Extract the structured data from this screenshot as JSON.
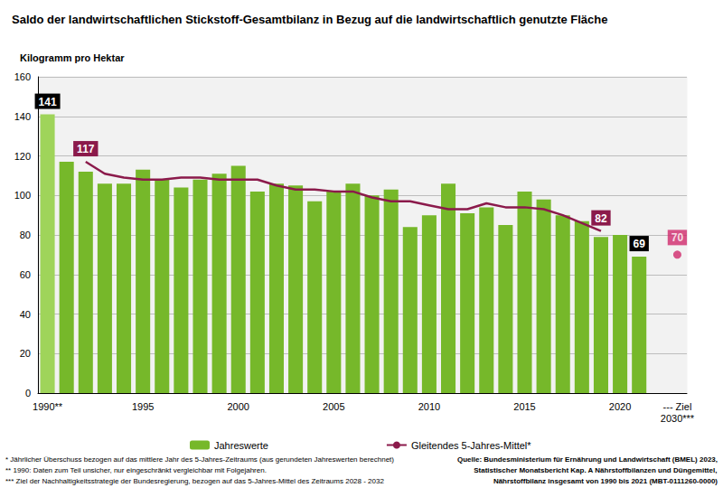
{
  "chart_data": {
    "type": "bar",
    "title": "Saldo der landwirtschaftlichen Stickstoff-Gesamtbilanz in Bezug auf die landwirtschaftlich genutzte Fläche",
    "ylabel": "Kilogramm pro Hektar",
    "categories": [
      "1990**",
      null,
      null,
      null,
      null,
      "1995",
      null,
      null,
      null,
      null,
      "2000",
      null,
      null,
      null,
      null,
      "2005",
      null,
      null,
      null,
      null,
      "2010",
      null,
      null,
      null,
      null,
      "2015",
      null,
      null,
      null,
      null,
      "2020",
      null,
      null,
      "--- Ziel\n2030***"
    ],
    "series": [
      {
        "name": "Jahreswerte",
        "type": "bar",
        "color": "#76b82a",
        "colors": [
          "#9fd45a",
          "#76b82a",
          "#76b82a",
          "#76b82a",
          "#76b82a",
          "#76b82a",
          "#76b82a",
          "#76b82a",
          "#76b82a",
          "#76b82a",
          "#76b82a",
          "#76b82a",
          "#76b82a",
          "#76b82a",
          "#76b82a",
          "#76b82a",
          "#76b82a",
          "#76b82a",
          "#76b82a",
          "#76b82a",
          "#76b82a",
          "#76b82a",
          "#76b82a",
          "#76b82a",
          "#76b82a",
          "#76b82a",
          "#76b82a",
          "#76b82a",
          "#76b82a",
          "#76b82a",
          "#76b82a",
          "#76b82a",
          "#76b82a",
          "#76b82a"
        ],
        "values": [
          141,
          117,
          112,
          106,
          106,
          113,
          108,
          104,
          108,
          111,
          115,
          102,
          106,
          105,
          97,
          102,
          106,
          100,
          103,
          84,
          90,
          106,
          91,
          94,
          85,
          102,
          98,
          90,
          87,
          79,
          80,
          69,
          null,
          null
        ],
        "value_labels": [
          "141",
          null,
          null,
          null,
          null,
          null,
          null,
          null,
          null,
          null,
          null,
          null,
          null,
          null,
          null,
          null,
          null,
          null,
          null,
          null,
          null,
          null,
          null,
          null,
          null,
          null,
          null,
          null,
          null,
          null,
          null,
          "69",
          null,
          null
        ]
      },
      {
        "name": "Gleitendes 5-Jahres-Mittel*",
        "type": "line",
        "color": "#8b1a4b",
        "line_style": "solid",
        "values": [
          null,
          null,
          117,
          111,
          109,
          108,
          108,
          109,
          109,
          108,
          108,
          108,
          105,
          103,
          103,
          102,
          102,
          99,
          97,
          97,
          95,
          93,
          93,
          96,
          94,
          94,
          93,
          90,
          86,
          82,
          null,
          null,
          null,
          null
        ],
        "value_labels": [
          null,
          null,
          "117",
          null,
          null,
          null,
          null,
          null,
          null,
          null,
          null,
          null,
          null,
          null,
          null,
          null,
          null,
          null,
          null,
          null,
          null,
          null,
          null,
          null,
          null,
          null,
          null,
          null,
          null,
          "82",
          null,
          null,
          null,
          null
        ]
      },
      {
        "type": "scatter",
        "color": "#d0296b",
        "marker": "circle",
        "values": [
          null,
          null,
          null,
          null,
          null,
          null,
          null,
          null,
          null,
          null,
          null,
          null,
          null,
          null,
          null,
          null,
          null,
          null,
          null,
          null,
          null,
          null,
          null,
          null,
          null,
          null,
          null,
          null,
          null,
          null,
          null,
          null,
          null,
          70
        ],
        "value_labels": [
          null,
          null,
          null,
          null,
          null,
          null,
          null,
          null,
          null,
          null,
          null,
          null,
          null,
          null,
          null,
          null,
          null,
          null,
          null,
          null,
          null,
          null,
          null,
          null,
          null,
          null,
          null,
          null,
          null,
          null,
          null,
          null,
          null,
          "70"
        ]
      }
    ],
    "ylim": [
      0,
      160
    ],
    "yticks": [
      0,
      20,
      40,
      60,
      80,
      100,
      120,
      140,
      160
    ],
    "grid": true,
    "legend": "bottom",
    "footnotes": [
      "* Jährlicher Überschuss bezogen auf das mittlere Jahr des 5-Jahres-Zeitraums (aus gerundeten Jahreswerten berechnet)",
      "** 1990: Daten zum Teil unsicher, nur eingeschränkt vergleichbar mit Folgejahren.",
      "*** Ziel der Nachhaltigkeitsstrategie der Bundesregierung, bezogen auf das 5-Jahres-Mittel des Zeitraums 2028 - 2032"
    ],
    "source": [
      "Quelle: Bundesministerium für Ernährung und Landwirtschaft (BMEL) 2023,",
      "Statistischer Monatsbericht Kap. A Nährstoffbilanzen und Düngemittel,",
      "Nährstoffbilanz insgesamt von 1990 bis 2021 (MBT-0111260-0000)"
    ]
  }
}
